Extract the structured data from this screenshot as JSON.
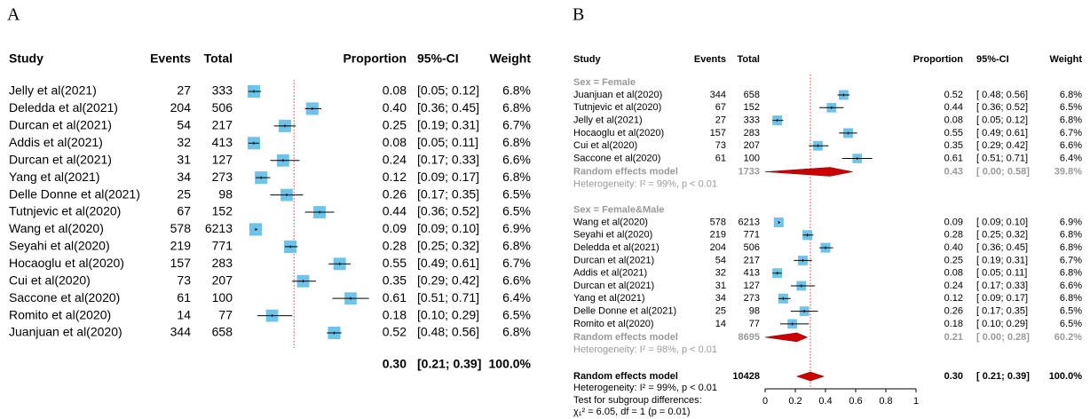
{
  "chart_data": [
    {
      "type": "forest",
      "panel_label": "A",
      "columns": [
        "Study",
        "Events",
        "Total",
        "Proportion",
        "95%-CI",
        "Weight"
      ],
      "xlim": [
        0,
        0.75
      ],
      "square_color": "#6ec3e8",
      "reference_color": "#e04040",
      "studies": [
        {
          "name": "Jelly et al(2021)",
          "events": 27,
          "total": 333,
          "proportion": 0.08,
          "proportion_label": "0.08",
          "ci_low": 0.05,
          "ci_high": 0.12,
          "ci_label": "[0.05; 0.12]",
          "weight": 6.8,
          "weight_label": "6.8%"
        },
        {
          "name": "Deledda et al(2021)",
          "events": 204,
          "total": 506,
          "proportion": 0.4,
          "proportion_label": "0.40",
          "ci_low": 0.36,
          "ci_high": 0.45,
          "ci_label": "[0.36; 0.45]",
          "weight": 6.8,
          "weight_label": "6.8%"
        },
        {
          "name": "Durcan et al(2021)",
          "events": 54,
          "total": 217,
          "proportion": 0.25,
          "proportion_label": "0.25",
          "ci_low": 0.19,
          "ci_high": 0.31,
          "ci_label": "[0.19; 0.31]",
          "weight": 6.7,
          "weight_label": "6.7%"
        },
        {
          "name": "Addis et al(2021)",
          "events": 32,
          "total": 413,
          "proportion": 0.08,
          "proportion_label": "0.08",
          "ci_low": 0.05,
          "ci_high": 0.11,
          "ci_label": "[0.05; 0.11]",
          "weight": 6.8,
          "weight_label": "6.8%"
        },
        {
          "name": "Durcan et al(2021)",
          "events": 31,
          "total": 127,
          "proportion": 0.24,
          "proportion_label": "0.24",
          "ci_low": 0.17,
          "ci_high": 0.33,
          "ci_label": "[0.17; 0.33]",
          "weight": 6.6,
          "weight_label": "6.6%"
        },
        {
          "name": "Yang et al(2021)",
          "events": 34,
          "total": 273,
          "proportion": 0.12,
          "proportion_label": "0.12",
          "ci_low": 0.09,
          "ci_high": 0.17,
          "ci_label": "[0.09; 0.17]",
          "weight": 6.8,
          "weight_label": "6.8%"
        },
        {
          "name": "Delle Donne et al(2021)",
          "events": 25,
          "total": 98,
          "proportion": 0.26,
          "proportion_label": "0.26",
          "ci_low": 0.17,
          "ci_high": 0.35,
          "ci_label": "[0.17; 0.35]",
          "weight": 6.5,
          "weight_label": "6.5%"
        },
        {
          "name": "Tutnjevic et al(2020)",
          "events": 67,
          "total": 152,
          "proportion": 0.44,
          "proportion_label": "0.44",
          "ci_low": 0.36,
          "ci_high": 0.52,
          "ci_label": "[0.36; 0.52]",
          "weight": 6.5,
          "weight_label": "6.5%"
        },
        {
          "name": "Wang et al(2020)",
          "events": 578,
          "total": 6213,
          "proportion": 0.09,
          "proportion_label": "0.09",
          "ci_low": 0.09,
          "ci_high": 0.1,
          "ci_label": "[0.09; 0.10]",
          "weight": 6.9,
          "weight_label": "6.9%"
        },
        {
          "name": "Seyahi et al(2020)",
          "events": 219,
          "total": 771,
          "proportion": 0.28,
          "proportion_label": "0.28",
          "ci_low": 0.25,
          "ci_high": 0.32,
          "ci_label": "[0.25; 0.32]",
          "weight": 6.8,
          "weight_label": "6.8%"
        },
        {
          "name": "Hocaoglu et al(2020)",
          "events": 157,
          "total": 283,
          "proportion": 0.55,
          "proportion_label": "0.55",
          "ci_low": 0.49,
          "ci_high": 0.61,
          "ci_label": "[0.49; 0.61]",
          "weight": 6.7,
          "weight_label": "6.7%"
        },
        {
          "name": "Cui et al(2020)",
          "events": 73,
          "total": 207,
          "proportion": 0.35,
          "proportion_label": "0.35",
          "ci_low": 0.29,
          "ci_high": 0.42,
          "ci_label": "[0.29; 0.42]",
          "weight": 6.6,
          "weight_label": "6.6%"
        },
        {
          "name": "Saccone et al(2020)",
          "events": 61,
          "total": 100,
          "proportion": 0.61,
          "proportion_label": "0.61",
          "ci_low": 0.51,
          "ci_high": 0.71,
          "ci_label": "[0.51; 0.71]",
          "weight": 6.4,
          "weight_label": "6.4%"
        },
        {
          "name": "Romito et al(2020)",
          "events": 14,
          "total": 77,
          "proportion": 0.18,
          "proportion_label": "0.18",
          "ci_low": 0.1,
          "ci_high": 0.29,
          "ci_label": "[0.10; 0.29]",
          "weight": 6.5,
          "weight_label": "6.5%"
        },
        {
          "name": "Juanjuan et al(2020)",
          "events": 344,
          "total": 658,
          "proportion": 0.52,
          "proportion_label": "0.52",
          "ci_low": 0.48,
          "ci_high": 0.56,
          "ci_label": "[0.48; 0.56]",
          "weight": 6.8,
          "weight_label": "6.8%"
        }
      ],
      "overall": {
        "proportion": 0.3,
        "proportion_label": "0.30",
        "ci_low": 0.21,
        "ci_high": 0.39,
        "ci_label": "[0.21; 0.39]",
        "weight": 100,
        "weight_label": "100.0%"
      }
    },
    {
      "type": "forest",
      "panel_label": "B",
      "columns": [
        "Study",
        "Events",
        "Total",
        "Proportion",
        "95%-CI",
        "Weight"
      ],
      "xlim": [
        0,
        1
      ],
      "xticks": [
        0,
        0.2,
        0.4,
        0.6,
        0.8,
        1
      ],
      "square_color": "#6ec3e8",
      "reference_color": "#e04040",
      "diamond_color": "#cc0000",
      "groups": [
        {
          "name": "Sex = Female",
          "studies": [
            {
              "name": "Juanjuan et al(2020)",
              "events": 344,
              "total": 658,
              "proportion": 0.52,
              "proportion_label": "0.52",
              "ci_low": 0.48,
              "ci_high": 0.56,
              "ci_label": "[ 0.48; 0.56]",
              "weight": 6.8,
              "weight_label": "6.8%"
            },
            {
              "name": "Tutnjevic et al(2020)",
              "events": 67,
              "total": 152,
              "proportion": 0.44,
              "proportion_label": "0.44",
              "ci_low": 0.36,
              "ci_high": 0.52,
              "ci_label": "[ 0.36; 0.52]",
              "weight": 6.5,
              "weight_label": "6.5%"
            },
            {
              "name": "Jelly et al(2021)",
              "events": 27,
              "total": 333,
              "proportion": 0.08,
              "proportion_label": "0.08",
              "ci_low": 0.05,
              "ci_high": 0.12,
              "ci_label": "[ 0.05; 0.12]",
              "weight": 6.8,
              "weight_label": "6.8%"
            },
            {
              "name": "Hocaoglu et al(2020)",
              "events": 157,
              "total": 283,
              "proportion": 0.55,
              "proportion_label": "0.55",
              "ci_low": 0.49,
              "ci_high": 0.61,
              "ci_label": "[ 0.49; 0.61]",
              "weight": 6.7,
              "weight_label": "6.7%"
            },
            {
              "name": "Cui et al(2020)",
              "events": 73,
              "total": 207,
              "proportion": 0.35,
              "proportion_label": "0.35",
              "ci_low": 0.29,
              "ci_high": 0.42,
              "ci_label": "[ 0.29; 0.42]",
              "weight": 6.6,
              "weight_label": "6.6%"
            },
            {
              "name": "Saccone et al(2020)",
              "events": 61,
              "total": 100,
              "proportion": 0.61,
              "proportion_label": "0.61",
              "ci_low": 0.51,
              "ci_high": 0.71,
              "ci_label": "[ 0.51; 0.71]",
              "weight": 6.4,
              "weight_label": "6.4%"
            }
          ],
          "random": {
            "name": "Random effects model",
            "total": 1733,
            "proportion": 0.43,
            "proportion_label": "0.43",
            "ci_low": 0,
            "ci_high": 0.58,
            "ci_label": "[ 0.00; 0.58]",
            "weight": 39.8,
            "weight_label": "39.8%"
          },
          "heterogeneity": "Heterogeneity: I² = 99%, p < 0.01"
        },
        {
          "name": "Sex = Female&Male",
          "studies": [
            {
              "name": "Wang et al(2020)",
              "events": 578,
              "total": 6213,
              "proportion": 0.09,
              "proportion_label": "0.09",
              "ci_low": 0.09,
              "ci_high": 0.1,
              "ci_label": "[ 0.09; 0.10]",
              "weight": 6.9,
              "weight_label": "6.9%"
            },
            {
              "name": "Seyahi et al(2020)",
              "events": 219,
              "total": 771,
              "proportion": 0.28,
              "proportion_label": "0.28",
              "ci_low": 0.25,
              "ci_high": 0.32,
              "ci_label": "[ 0.25; 0.32]",
              "weight": 6.8,
              "weight_label": "6.8%"
            },
            {
              "name": "Deledda et al(2021)",
              "events": 204,
              "total": 506,
              "proportion": 0.4,
              "proportion_label": "0.40",
              "ci_low": 0.36,
              "ci_high": 0.45,
              "ci_label": "[ 0.36; 0.45]",
              "weight": 6.8,
              "weight_label": "6.8%"
            },
            {
              "name": "Durcan et al(2021)",
              "events": 54,
              "total": 217,
              "proportion": 0.25,
              "proportion_label": "0.25",
              "ci_low": 0.19,
              "ci_high": 0.31,
              "ci_label": "[ 0.19; 0.31]",
              "weight": 6.7,
              "weight_label": "6.7%"
            },
            {
              "name": "Addis et al(2021)",
              "events": 32,
              "total": 413,
              "proportion": 0.08,
              "proportion_label": "0.08",
              "ci_low": 0.05,
              "ci_high": 0.11,
              "ci_label": "[ 0.05; 0.11]",
              "weight": 6.8,
              "weight_label": "6.8%"
            },
            {
              "name": "Durcan et al(2021)",
              "events": 31,
              "total": 127,
              "proportion": 0.24,
              "proportion_label": "0.24",
              "ci_low": 0.17,
              "ci_high": 0.33,
              "ci_label": "[ 0.17; 0.33]",
              "weight": 6.6,
              "weight_label": "6.6%"
            },
            {
              "name": "Yang et al(2021)",
              "events": 34,
              "total": 273,
              "proportion": 0.12,
              "proportion_label": "0.12",
              "ci_low": 0.09,
              "ci_high": 0.17,
              "ci_label": "[ 0.09; 0.17]",
              "weight": 6.8,
              "weight_label": "6.8%"
            },
            {
              "name": "Delle Donne et al(2021)",
              "events": 25,
              "total": 98,
              "proportion": 0.26,
              "proportion_label": "0.26",
              "ci_low": 0.17,
              "ci_high": 0.35,
              "ci_label": "[ 0.17; 0.35]",
              "weight": 6.5,
              "weight_label": "6.5%"
            },
            {
              "name": "Romito et al(2020)",
              "events": 14,
              "total": 77,
              "proportion": 0.18,
              "proportion_label": "0.18",
              "ci_low": 0.1,
              "ci_high": 0.29,
              "ci_label": "[ 0.10; 0.29]",
              "weight": 6.5,
              "weight_label": "6.5%"
            }
          ],
          "random": {
            "name": "Random effects model",
            "total": 8695,
            "proportion": 0.21,
            "proportion_label": "0.21",
            "ci_low": 0,
            "ci_high": 0.28,
            "ci_label": "[ 0.00; 0.28]",
            "weight": 60.2,
            "weight_label": "60.2%"
          },
          "heterogeneity": "Heterogeneity: I² = 98%, p < 0.01"
        }
      ],
      "overall": {
        "name": "Random effects model",
        "total": 10428,
        "proportion": 0.3,
        "proportion_label": "0.30",
        "ci_low": 0.21,
        "ci_high": 0.39,
        "ci_label": "[ 0.21; 0.39]",
        "weight": 100,
        "weight_label": "100.0%",
        "heterogeneity": "Heterogeneity: I² = 99%, p < 0.01",
        "test_label": "Test for subgroup differences:",
        "test": "χ₁² = 6.05, df = 1 (p = 0.01)"
      }
    }
  ]
}
